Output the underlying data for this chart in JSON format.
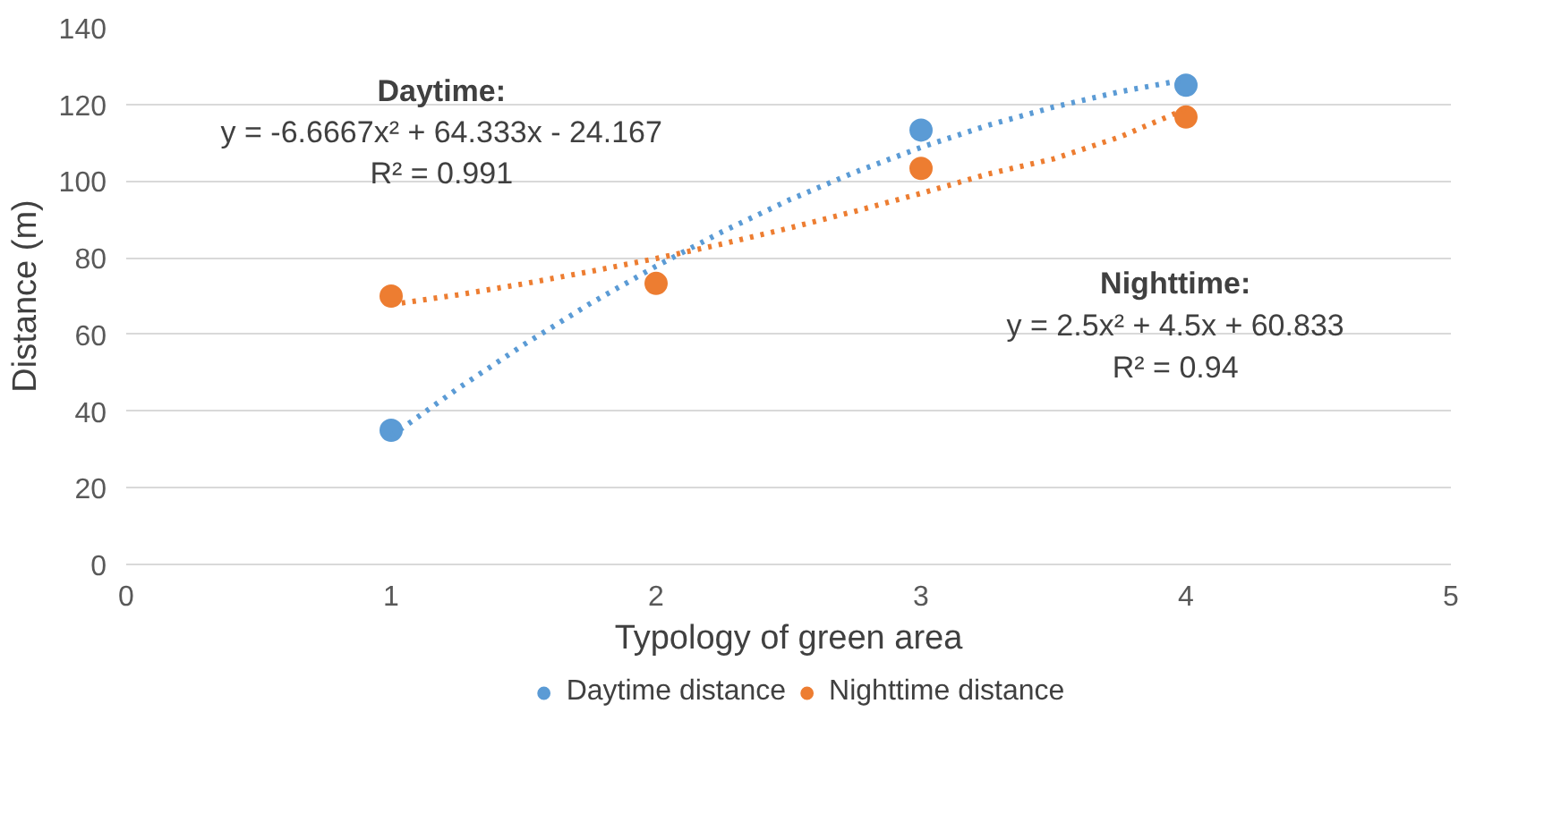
{
  "chart_data": {
    "type": "scatter",
    "xlabel": "Typology of green area",
    "ylabel": "Distance (m)",
    "x": [
      1,
      2,
      3,
      4
    ],
    "series": [
      {
        "name": "Daytime distance",
        "color": "#5b9bd5",
        "marker": "circle",
        "values": [
          35,
          null,
          113.3,
          125
        ]
      },
      {
        "name": "Nighttime distance",
        "color": "#ed7d31",
        "marker": "circle",
        "values": [
          70,
          73.3,
          103.3,
          116.7
        ]
      },
      {
        "type": "line",
        "line_style": "dotted",
        "color": "#5b9bd5",
        "x": [
          1,
          1.25,
          1.5,
          1.75,
          2,
          2.25,
          2.5,
          2.75,
          3,
          3.25,
          3.5,
          3.75,
          4
        ],
        "values": [
          33.5,
          45.8,
          57.3,
          68.0,
          77.8,
          86.8,
          95.0,
          102.3,
          108.8,
          114.5,
          119.3,
          123.3,
          126.5
        ]
      },
      {
        "type": "line",
        "line_style": "dotted",
        "color": "#ed7d31",
        "x": [
          1,
          1.25,
          1.5,
          1.75,
          2,
          2.25,
          2.5,
          2.75,
          3,
          3.25,
          3.5,
          3.75,
          4
        ],
        "values": [
          67.8,
          70.3,
          73.2,
          76.4,
          79.8,
          83.6,
          87.7,
          92.1,
          96.8,
          101.8,
          105.8,
          111.5,
          118.8
        ]
      }
    ],
    "annotations": [
      "Daytime:\ny = -6.6667x² + 64.333x - 24.167\nR² = 0.991",
      "Nighttime:\ny = 2.5x² + 4.5x + 60.833\nR² = 0.94"
    ],
    "xlim": [
      0,
      5
    ],
    "xticks": [
      0,
      1,
      2,
      3,
      4,
      5
    ],
    "ylim": [
      0,
      140
    ],
    "yticks": [
      0,
      20,
      40,
      60,
      80,
      100,
      120,
      140
    ],
    "grid": "y",
    "legend": "bottom"
  }
}
